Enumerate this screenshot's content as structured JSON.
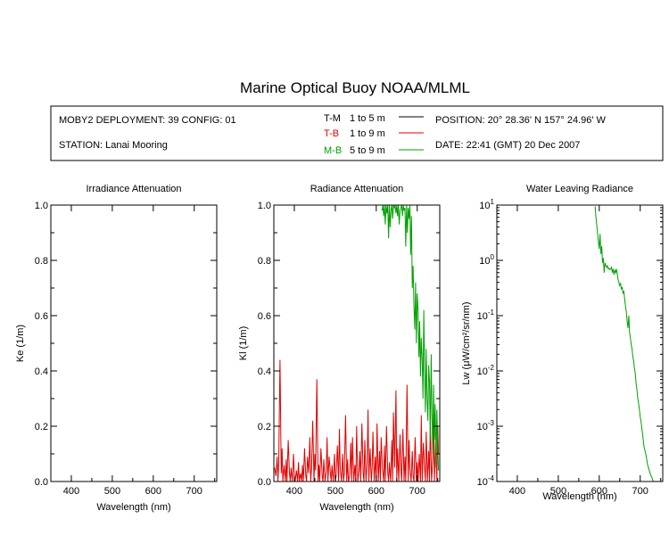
{
  "header": {
    "title": "Marine Optical Buoy NOAA/MLML",
    "deployment": "MOBY2 DEPLOYMENT: 39 CONFIG: 01",
    "station": "STATION: Lanai Mooring",
    "position": "POSITION: 20° 28.36' N   157° 24.96' W",
    "date": "DATE: 22:41 (GMT) 20 Dec 2007"
  },
  "legend": [
    {
      "code": "T-M",
      "range": "1 to 5  m",
      "color": "#000000"
    },
    {
      "code": "T-B",
      "range": "1 to 9  m",
      "color": "#e00000"
    },
    {
      "code": "M-B",
      "range": "5 to 9  m",
      "color": "#00a000"
    }
  ],
  "chart_data": [
    {
      "type": "line",
      "title": "Irradiance Attenuation",
      "xlabel": "Wavelength (nm)",
      "ylabel": "Ke  (1/m)",
      "xlim": [
        350,
        755
      ],
      "ylim": [
        0,
        1
      ],
      "xticks": [
        "400",
        "500",
        "600",
        "700"
      ],
      "yticks": [
        "0.0",
        "0.2",
        "0.4",
        "0.6",
        "0.8",
        "1.0"
      ],
      "series": []
    },
    {
      "type": "line",
      "title": "Radiance Attenuation",
      "xlabel": "Wavelength (nm)",
      "ylabel": "Kl  (1/m)",
      "xlim": [
        350,
        755
      ],
      "ylim": [
        0,
        1
      ],
      "xticks": [
        "400",
        "500",
        "600",
        "700"
      ],
      "yticks": [
        "0.0",
        "0.2",
        "0.4",
        "0.6",
        "0.8",
        "1.0"
      ],
      "series": [
        {
          "name": "T-B",
          "color": "#e00000",
          "x": [
            352,
            355,
            358,
            360,
            362,
            365,
            368,
            370,
            372,
            375,
            378,
            380,
            382,
            385,
            388,
            390,
            392,
            395,
            398,
            400,
            402,
            405,
            408,
            410,
            412,
            415,
            418,
            420,
            422,
            425,
            428,
            430,
            432,
            435,
            438,
            440,
            442,
            445,
            448,
            450,
            452,
            455,
            458,
            460,
            462,
            465,
            468,
            470,
            472,
            475,
            478,
            480,
            482,
            485,
            488,
            490,
            492,
            495,
            498,
            500,
            502,
            505,
            508,
            510,
            512,
            515,
            518,
            520,
            522,
            525,
            528,
            530,
            532,
            535,
            538,
            540,
            542,
            545,
            548,
            550,
            552,
            555,
            558,
            560,
            562,
            565,
            568,
            570,
            572,
            575,
            578,
            580,
            582,
            585,
            588,
            590,
            592,
            595,
            598,
            600,
            602,
            605,
            608,
            610,
            612,
            615,
            618,
            620,
            622,
            625,
            628,
            630,
            632,
            635,
            638,
            640,
            642,
            645,
            648,
            650,
            652,
            655,
            658,
            660,
            662,
            665,
            668,
            670,
            672,
            675,
            678,
            680,
            682,
            685,
            688,
            690,
            692,
            695,
            698,
            700,
            702,
            705,
            708,
            710,
            712,
            715,
            718,
            720,
            722,
            725,
            728,
            730,
            732,
            735,
            738,
            740,
            742,
            745,
            748,
            750,
            752
          ],
          "y": [
            0.05,
            0.02,
            0.09,
            0.0,
            0.07,
            0.44,
            0.03,
            0.12,
            0.0,
            0.06,
            0.0,
            0.08,
            0.0,
            0.15,
            0.03,
            0.0,
            0.05,
            0.0,
            0.1,
            0.02,
            0.0,
            0.04,
            0.0,
            0.07,
            0.0,
            0.03,
            0.0,
            0.06,
            0.0,
            0.12,
            0.02,
            0.0,
            0.09,
            0.03,
            0.16,
            0.0,
            0.05,
            0.22,
            0.0,
            0.1,
            0.04,
            0.37,
            0.0,
            0.06,
            0.0,
            0.12,
            0.02,
            0.0,
            0.08,
            0.0,
            0.04,
            0.16,
            0.0,
            0.09,
            0.03,
            0.0,
            0.06,
            0.0,
            0.1,
            0.0,
            0.02,
            0.13,
            0.0,
            0.19,
            0.05,
            0.0,
            0.1,
            0.0,
            0.03,
            0.24,
            0.0,
            0.08,
            0.0,
            0.02,
            0.14,
            0.0,
            0.16,
            0.0,
            0.06,
            0.0,
            0.2,
            0.0,
            0.04,
            0.11,
            0.0,
            0.21,
            0.03,
            0.0,
            0.15,
            0.0,
            0.08,
            0.26,
            0.0,
            0.12,
            0.0,
            0.05,
            0.18,
            0.0,
            0.09,
            0.0,
            0.21,
            0.0,
            0.11,
            0.0,
            0.16,
            0.05,
            0.0,
            0.13,
            0.0,
            0.2,
            0.03,
            0.0,
            0.07,
            0.0,
            0.15,
            0.0,
            0.25,
            0.05,
            0.33,
            0.0,
            0.12,
            0.0,
            0.17,
            0.05,
            0.0,
            0.19,
            0.0,
            0.09,
            0.0,
            0.35,
            0.0,
            0.15,
            0.05,
            0.0,
            0.11,
            0.02,
            0.0,
            0.16,
            0.0,
            0.07,
            0.0,
            0.1,
            0.0,
            0.24,
            0.0,
            0.14,
            0.05,
            0.0,
            0.18,
            0.0,
            0.11,
            0.0,
            0.22,
            0.0,
            0.08,
            0.27,
            0.0,
            0.14,
            0.0,
            0.2,
            0.1
          ]
        },
        {
          "name": "M-B",
          "color": "#00a000",
          "x": [
            614,
            616,
            618,
            620,
            622,
            624,
            626,
            628,
            630,
            632,
            634,
            636,
            638,
            640,
            642,
            644,
            646,
            648,
            650,
            652,
            654,
            656,
            658,
            660,
            662,
            664,
            666,
            668,
            670,
            672,
            674,
            676,
            678,
            680,
            682,
            684,
            686,
            688,
            690,
            692,
            694,
            696,
            698,
            700,
            702,
            704,
            706,
            708,
            710,
            712,
            714,
            716,
            718,
            720,
            722,
            724,
            726,
            728,
            730,
            732,
            734,
            736,
            738,
            740,
            742,
            744,
            746,
            748,
            750,
            752
          ],
          "y": [
            0.98,
            1.0,
            0.96,
            1.0,
            0.93,
            1.0,
            0.97,
            1.0,
            0.88,
            1.0,
            0.92,
            0.98,
            1.0,
            0.95,
            1.0,
            0.99,
            1.0,
            0.97,
            1.0,
            0.96,
            1.0,
            0.93,
            0.98,
            0.99,
            1.0,
            0.96,
            1.0,
            0.98,
            0.99,
            0.85,
            1.0,
            0.9,
            0.99,
            0.95,
            1.0,
            0.82,
            0.96,
            0.7,
            0.78,
            0.63,
            0.55,
            0.72,
            0.5,
            0.68,
            0.62,
            0.45,
            0.58,
            0.38,
            0.52,
            0.44,
            0.3,
            0.62,
            0.4,
            0.25,
            0.48,
            0.3,
            0.22,
            0.42,
            0.36,
            0.15,
            0.46,
            0.24,
            0.1,
            0.35,
            0.15,
            0.28,
            0.05,
            0.26,
            0.14,
            0.04
          ]
        }
      ]
    },
    {
      "type": "line",
      "title": "Water Leaving Radiance",
      "xlabel": "Wavelength (nm)",
      "ylabel": "Lw  (μW/cm²/sr/nm)",
      "xlim": [
        350,
        755
      ],
      "ylim": [
        0.0001,
        10
      ],
      "yscale": "log",
      "xticks": [
        "400",
        "500",
        "600",
        "700"
      ],
      "yticks": [
        {
          "base": "10",
          "exp": "1"
        },
        {
          "base": "10",
          "exp": "0"
        },
        {
          "base": "10",
          "exp": "-1"
        },
        {
          "base": "10",
          "exp": "-2"
        },
        {
          "base": "10",
          "exp": "-3"
        },
        {
          "base": "10",
          "exp": "-4"
        }
      ],
      "series": [
        {
          "name": "M-B",
          "color": "#00a000",
          "x": [
            590,
            592,
            594,
            596,
            598,
            600,
            602,
            604,
            606,
            608,
            610,
            612,
            614,
            616,
            618,
            620,
            622,
            624,
            626,
            628,
            630,
            632,
            634,
            636,
            638,
            640,
            642,
            644,
            646,
            648,
            650,
            652,
            654,
            656,
            658,
            660,
            662,
            664,
            666,
            668,
            670,
            672,
            674,
            676,
            678,
            680,
            682,
            684,
            686,
            688,
            690,
            692,
            694,
            696,
            698,
            700,
            702,
            704,
            706,
            708,
            710,
            712,
            714,
            716,
            718,
            720,
            722,
            724,
            726,
            728,
            730,
            732,
            734,
            736,
            738,
            740
          ],
          "y": [
            9.5,
            6.0,
            4.2,
            3.0,
            2.2,
            1.6,
            3.0,
            1.3,
            1.8,
            0.9,
            1.1,
            0.6,
            0.9,
            0.8,
            0.75,
            0.8,
            0.7,
            0.72,
            0.68,
            0.7,
            0.75,
            0.6,
            0.7,
            0.55,
            0.66,
            0.6,
            0.7,
            0.58,
            0.45,
            0.4,
            0.35,
            0.38,
            0.3,
            0.33,
            0.25,
            0.28,
            0.2,
            0.15,
            0.12,
            0.08,
            0.06,
            0.1,
            0.05,
            0.04,
            0.03,
            0.025,
            0.018,
            0.015,
            0.011,
            0.009,
            0.006,
            0.0045,
            0.0032,
            0.0026,
            0.002,
            0.0015,
            0.0012,
            0.0009,
            0.0007,
            0.0005,
            0.0004,
            0.00035,
            0.0003,
            0.00025,
            0.0002,
            0.00018,
            0.00016,
            0.00014,
            0.00013,
            0.00012,
            0.00011,
            0.0001,
            0.0001,
            0.0001,
            0.0001,
            0.0001
          ]
        }
      ]
    }
  ]
}
